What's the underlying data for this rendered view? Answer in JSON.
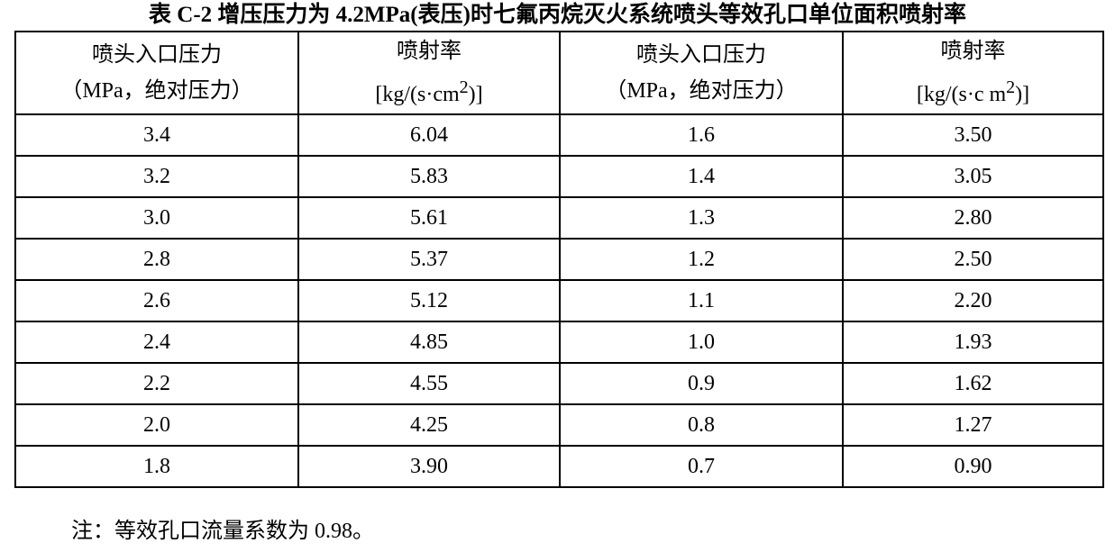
{
  "title": "表 C-2  增压压力为 4.2MPa(表压)时七氟丙烷灭火系统喷头等效孔口单位面积喷射率",
  "headers": [
    {
      "line1": "喷头入口压力",
      "line2_pre": "（MPa，绝对压力）",
      "sup": "",
      "line2_post": ""
    },
    {
      "line1": "喷射率",
      "line2_pre": "[kg/(s·cm",
      "sup": "2",
      "line2_post": ")]"
    },
    {
      "line1": "喷头入口压力",
      "line2_pre": "（MPa，绝对压力）",
      "sup": "",
      "line2_post": ""
    },
    {
      "line1": "喷射率",
      "line2_pre": "[kg/(s·c m",
      "sup": "2",
      "line2_post": ")]"
    }
  ],
  "rows": [
    [
      "3.4",
      "6.04",
      "1.6",
      "3.50"
    ],
    [
      "3.2",
      "5.83",
      "1.4",
      "3.05"
    ],
    [
      "3.0",
      "5.61",
      "1.3",
      "2.80"
    ],
    [
      "2.8",
      "5.37",
      "1.2",
      "2.50"
    ],
    [
      "2.6",
      "5.12",
      "1.1",
      "2.20"
    ],
    [
      "2.4",
      "4.85",
      "1.0",
      "1.93"
    ],
    [
      "2.2",
      "4.55",
      "0.9",
      "1.62"
    ],
    [
      "2.0",
      "4.25",
      "0.8",
      "1.27"
    ],
    [
      "1.8",
      "3.90",
      "0.7",
      "0.90"
    ]
  ],
  "note": "注：等效孔口流量系数为 0.98。"
}
